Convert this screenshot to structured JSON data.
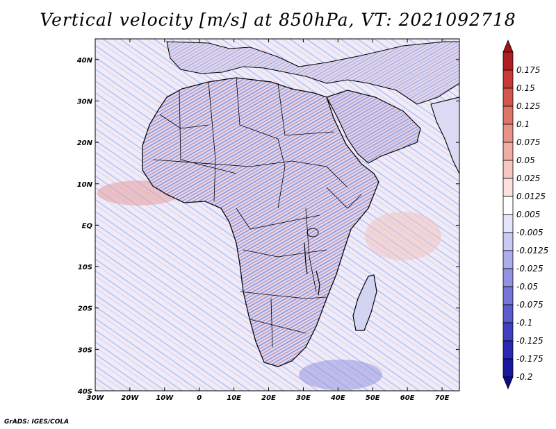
{
  "title": "Vertical velocity [m/s] at 850hPa, VT: 2021092718",
  "credit": "GrADS: IGES/COLA",
  "map": {
    "lon_ticks": [
      "30W",
      "20W",
      "10W",
      "0",
      "10E",
      "20E",
      "30E",
      "40E",
      "50E",
      "60E",
      "70E"
    ],
    "lat_ticks": [
      "40N",
      "30N",
      "20N",
      "10N",
      "EQ",
      "10S",
      "20S",
      "30S",
      "40S"
    ],
    "lon_range": [
      -30,
      75
    ],
    "lat_range": [
      -40,
      45
    ],
    "background_color": "#f3f3ff",
    "coastline_color": "#000000"
  },
  "colorbar": {
    "levels": [
      {
        "label": "0.175",
        "color": "#b01e22"
      },
      {
        "label": "0.15",
        "color": "#c83a36"
      },
      {
        "label": "0.125",
        "color": "#d4574e"
      },
      {
        "label": "0.1",
        "color": "#df7469"
      },
      {
        "label": "0.075",
        "color": "#e89186"
      },
      {
        "label": "0.05",
        "color": "#f0ada4"
      },
      {
        "label": "0.025",
        "color": "#f6c8c1"
      },
      {
        "label": "0.0125",
        "color": "#fbe2de"
      },
      {
        "label": "0.005",
        "color": "#ffffff"
      },
      {
        "label": "-0.005",
        "color": "#e4e4fa"
      },
      {
        "label": "-0.0125",
        "color": "#c9c9f3"
      },
      {
        "label": "-0.025",
        "color": "#adadec"
      },
      {
        "label": "-0.05",
        "color": "#9292e3"
      },
      {
        "label": "-0.075",
        "color": "#7676d9"
      },
      {
        "label": "-0.1",
        "color": "#5b5bcf"
      },
      {
        "label": "-0.125",
        "color": "#4040c3"
      },
      {
        "label": "-0.175",
        "color": "#2828b4"
      },
      {
        "label": "-0.2",
        "color": "#1616a0"
      }
    ],
    "top_arrow_color": "#9e1518",
    "bottom_arrow_color": "#0c0c8a"
  }
}
